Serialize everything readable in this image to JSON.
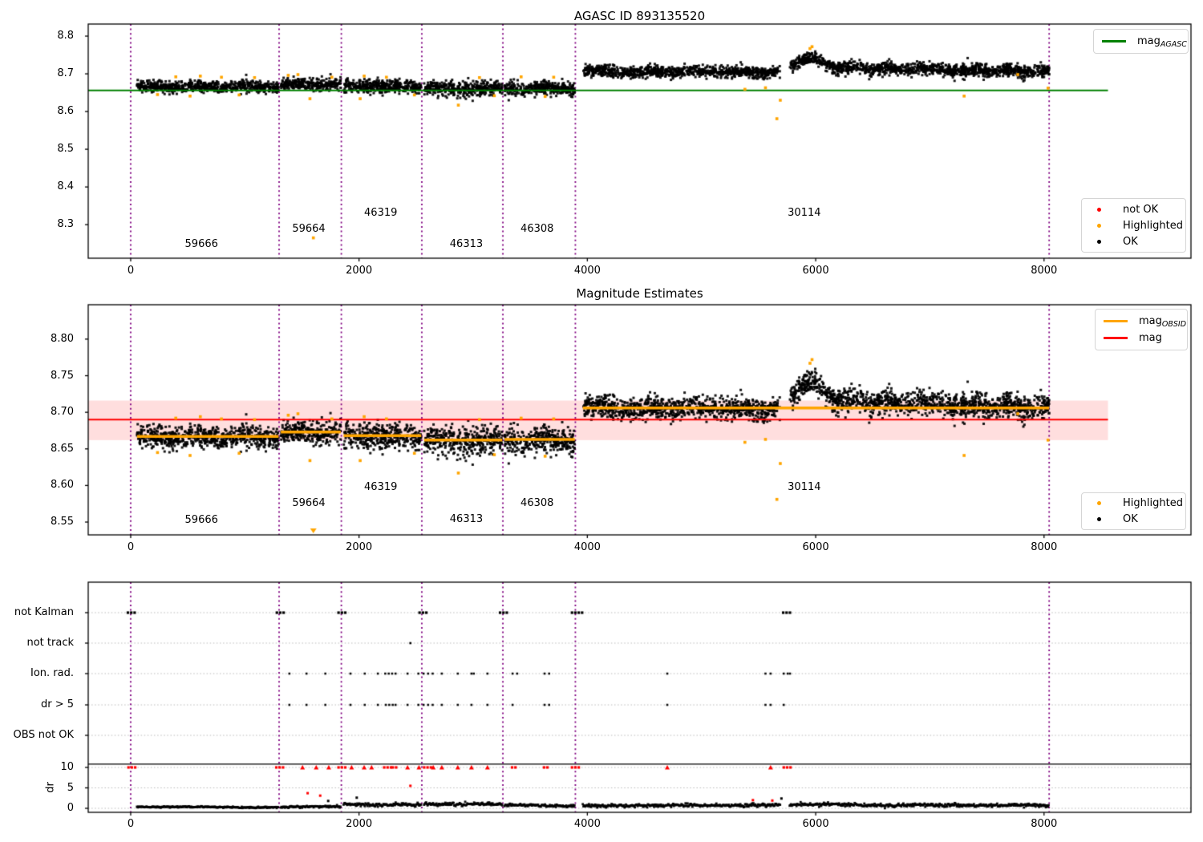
{
  "colors": {
    "ok": "#000000",
    "highlighted": "#ffa500",
    "not_ok": "#ff0000",
    "agasc_line": "#008000",
    "mag_line": "#ff0000",
    "obsid_line": "#ffa500",
    "boundary": "#800080",
    "band_fill": "rgba(255,0,0,0.13)",
    "grid": "#bbbbbb",
    "frame": "#000000"
  },
  "chart_data": [
    {
      "type": "scatter",
      "title": "AGASC ID 893135520",
      "xlim": [
        -372,
        9287
      ],
      "ylim": [
        8.211,
        8.832
      ],
      "yticks": [
        {
          "v": 8.8,
          "label": "8.8"
        },
        {
          "v": 8.7,
          "label": "8.7"
        },
        {
          "v": 8.6,
          "label": "8.6"
        },
        {
          "v": 8.5,
          "label": "8.5"
        },
        {
          "v": 8.4,
          "label": "8.4"
        },
        {
          "v": 8.3,
          "label": "8.3"
        }
      ],
      "xticks": [
        {
          "v": 0,
          "label": "0"
        },
        {
          "v": 2000,
          "label": "2000"
        },
        {
          "v": 4000,
          "label": "4000"
        },
        {
          "v": 6000,
          "label": "6000"
        },
        {
          "v": 8000,
          "label": "8000"
        }
      ],
      "agasc_mag": 8.656,
      "hline_span": [
        -372,
        8560
      ],
      "boundaries": [
        0,
        1300,
        1845,
        2550,
        3260,
        3895,
        8045
      ],
      "legend_lines": [
        {
          "main": "mag",
          "sub": "AGASC",
          "color": "#008000"
        }
      ],
      "legend_markers": [
        {
          "label": "not OK",
          "color": "#ff0000"
        },
        {
          "label": "Highlighted",
          "color": "#ffa500"
        },
        {
          "label": "OK",
          "color": "#000000"
        }
      ],
      "obsid_labels": [
        {
          "text": "59666",
          "x": 620,
          "y": 8.247
        },
        {
          "text": "59664",
          "x": 1560,
          "y": 8.288
        },
        {
          "text": "46319",
          "x": 2190,
          "y": 8.331
        },
        {
          "text": "46313",
          "x": 2940,
          "y": 8.247
        },
        {
          "text": "46308",
          "x": 3560,
          "y": 8.288
        },
        {
          "text": "30114",
          "x": 5900,
          "y": 8.331
        }
      ]
    },
    {
      "type": "scatter",
      "title": "Magnitude Estimates",
      "xlim": [
        -372,
        9287
      ],
      "ylim": [
        8.5325,
        8.847
      ],
      "yticks": [
        {
          "v": 8.8,
          "label": "8.80"
        },
        {
          "v": 8.75,
          "label": "8.75"
        },
        {
          "v": 8.7,
          "label": "8.70"
        },
        {
          "v": 8.65,
          "label": "8.65"
        },
        {
          "v": 8.6,
          "label": "8.60"
        },
        {
          "v": 8.55,
          "label": "8.55"
        }
      ],
      "xticks": [
        {
          "v": 0,
          "label": "0"
        },
        {
          "v": 2000,
          "label": "2000"
        },
        {
          "v": 4000,
          "label": "4000"
        },
        {
          "v": 6000,
          "label": "6000"
        },
        {
          "v": 8000,
          "label": "8000"
        }
      ],
      "mag": 8.69,
      "band": [
        8.662,
        8.716
      ],
      "hline_span": [
        -372,
        8560
      ],
      "boundaries": [
        0,
        1300,
        1845,
        2550,
        3260,
        3895,
        8045
      ],
      "legend_lines": [
        {
          "main": "mag",
          "sub": "OBSID",
          "color": "#ffa500"
        },
        {
          "main": "mag",
          "sub": "",
          "color": "#ff0000"
        }
      ],
      "legend_markers": [
        {
          "label": "Highlighted",
          "color": "#ffa500"
        },
        {
          "label": "OK",
          "color": "#000000"
        }
      ],
      "obsid_labels": [
        {
          "text": "59666",
          "x": 620,
          "y": 8.552
        },
        {
          "text": "59664",
          "x": 1560,
          "y": 8.575
        },
        {
          "text": "46319",
          "x": 2190,
          "y": 8.597
        },
        {
          "text": "46313",
          "x": 2940,
          "y": 8.553
        },
        {
          "text": "46308",
          "x": 3560,
          "y": 8.575
        },
        {
          "text": "30114",
          "x": 5900,
          "y": 8.597
        }
      ]
    },
    {
      "type": "flags",
      "categories": [
        "not Kalman",
        "not track",
        "Ion. rad.",
        "dr > 5",
        "OBS not OK"
      ],
      "dr_ticks": [
        {
          "v": 10,
          "label": "10"
        },
        {
          "v": 5,
          "label": "5"
        },
        {
          "v": 0,
          "label": "0"
        }
      ],
      "ylabel": "dr",
      "xticks": [
        {
          "v": 0,
          "label": "0"
        },
        {
          "v": 2000,
          "label": "2000"
        },
        {
          "v": 4000,
          "label": "4000"
        },
        {
          "v": 6000,
          "label": "6000"
        },
        {
          "v": 8000,
          "label": "8000"
        }
      ],
      "boundaries": [
        0,
        1300,
        1845,
        2550,
        3260,
        3895,
        8045
      ],
      "clip_line_dr": 10.8,
      "not_kalman": [
        [
          0,
          35
        ],
        [
          1300,
          30
        ],
        [
          1845,
          35
        ],
        [
          2550,
          30
        ],
        [
          3260,
          35
        ],
        [
          3900,
          45
        ],
        [
          5745,
          40
        ]
      ],
      "not_track": [
        2450
      ],
      "ion_rad": [
        1390,
        1540,
        1705,
        1925,
        2050,
        2165,
        2230,
        2260,
        2290,
        2320,
        2425,
        2520,
        2565,
        2605,
        2645,
        2725,
        2865,
        2985,
        3005,
        3125,
        3345,
        3385,
        3625,
        3665,
        4700,
        5560,
        5605,
        5720,
        5755,
        5775
      ],
      "dr_gt5": [
        1390,
        1540,
        1705,
        1925,
        2050,
        2165,
        2235,
        2265,
        2295,
        2320,
        2425,
        2520,
        2565,
        2605,
        2645,
        2725,
        2865,
        2985,
        3125,
        3345,
        3625,
        3665,
        4700,
        5560,
        5605,
        5720
      ],
      "dr10_red": [
        [
          0,
          30
        ],
        [
          1300,
          35
        ],
        [
          1505,
          8
        ],
        [
          1625,
          8
        ],
        [
          1735,
          8
        ],
        [
          1845,
          35
        ],
        [
          1935,
          8
        ],
        [
          2045,
          10
        ],
        [
          2110,
          8
        ],
        [
          2240,
          30
        ],
        [
          2300,
          15
        ],
        [
          2425,
          10
        ],
        [
          2525,
          10
        ],
        [
          2590,
          30
        ],
        [
          2650,
          12
        ],
        [
          2725,
          10
        ],
        [
          2865,
          10
        ],
        [
          2985,
          10
        ],
        [
          3125,
          10
        ],
        [
          3345,
          15
        ],
        [
          3625,
          15
        ],
        [
          3895,
          40
        ],
        [
          4700,
          10
        ],
        [
          5605,
          10
        ],
        [
          5740,
          30
        ]
      ],
      "red_points": [
        [
          1550,
          3.7
        ],
        [
          1660,
          3.1
        ],
        [
          2450,
          5.5
        ],
        [
          5450,
          2.0
        ],
        [
          5620,
          1.9
        ]
      ],
      "black_points": [
        [
          1730,
          1.8
        ],
        [
          1980,
          2.6
        ],
        [
          5700,
          2.4
        ]
      ],
      "dr_trace": [
        {
          "x0": 55,
          "x1": 1295,
          "mean": 0.3,
          "sigma": 0.09
        },
        {
          "x0": 1315,
          "x1": 1840,
          "mean": 0.36,
          "sigma": 0.12
        },
        {
          "x0": 1865,
          "x1": 2545,
          "sigma": 0.2,
          "meanPts": [
            [
              1865,
              1.1
            ],
            [
              1990,
              0.95
            ],
            [
              2150,
              0.8
            ],
            [
              2350,
              0.9
            ],
            [
              2545,
              0.85
            ]
          ]
        },
        {
          "x0": 2570,
          "x1": 3255,
          "sigma": 0.22,
          "meanPts": [
            [
              2570,
              0.9
            ],
            [
              2760,
              1.1
            ],
            [
              2950,
              0.95
            ],
            [
              3120,
              1.15
            ],
            [
              3255,
              0.9
            ]
          ]
        },
        {
          "x0": 3275,
          "x1": 3890,
          "mean": 0.65,
          "sigma": 0.16
        },
        {
          "x0": 3960,
          "x1": 8045,
          "sigma": 0.2,
          "meanPts": [
            [
              3960,
              0.7
            ],
            [
              4400,
              0.62
            ],
            [
              4800,
              0.82
            ],
            [
              5200,
              0.68
            ],
            [
              5600,
              0.78
            ],
            [
              5820,
              0.95
            ],
            [
              6200,
              0.88
            ],
            [
              6600,
              0.72
            ],
            [
              7000,
              0.84
            ],
            [
              7400,
              0.68
            ],
            [
              7800,
              0.8
            ],
            [
              8045,
              0.74
            ]
          ]
        }
      ]
    }
  ],
  "series_model": {
    "gaps": [
      [
        5688,
        5770
      ]
    ],
    "segments": [
      {
        "obsid": "59666",
        "x0": 55,
        "x1": 1295,
        "mag": 8.666,
        "sigma": 0.0075,
        "mag_obsid": 8.667
      },
      {
        "obsid": "59664",
        "x0": 1315,
        "x1": 1840,
        "mag": 8.672,
        "sigma": 0.008,
        "mag_obsid": 8.673
      },
      {
        "obsid": "46319",
        "x0": 1865,
        "x1": 2545,
        "mag": 8.667,
        "sigma": 0.009,
        "mag_obsid": 8.668
      },
      {
        "obsid": "46313",
        "x0": 2570,
        "x1": 3255,
        "mag": 8.661,
        "sigma": 0.01,
        "mag_obsid": 8.662
      },
      {
        "obsid": "46308",
        "x0": 3275,
        "x1": 3890,
        "mag": 8.662,
        "sigma": 0.009,
        "mag_obsid": 8.663
      },
      {
        "obsid": "30114",
        "x0": 3960,
        "x1": 8045,
        "sigma": 0.008,
        "mag_obsid": 8.706,
        "profile": [
          [
            3960,
            8.706
          ],
          [
            4150,
            8.709
          ],
          [
            4350,
            8.703
          ],
          [
            4550,
            8.707
          ],
          [
            4750,
            8.703
          ],
          [
            4950,
            8.708
          ],
          [
            5150,
            8.703
          ],
          [
            5350,
            8.706
          ],
          [
            5550,
            8.701
          ],
          [
            5680,
            8.704
          ],
          [
            5770,
            8.72
          ],
          [
            5890,
            8.738
          ],
          [
            5975,
            8.743
          ],
          [
            6060,
            8.728
          ],
          [
            6180,
            8.714
          ],
          [
            6330,
            8.721
          ],
          [
            6480,
            8.71
          ],
          [
            6630,
            8.718
          ],
          [
            6780,
            8.709
          ],
          [
            6930,
            8.716
          ],
          [
            7080,
            8.712
          ],
          [
            7230,
            8.707
          ],
          [
            7380,
            8.713
          ],
          [
            7530,
            8.705
          ],
          [
            7680,
            8.711
          ],
          [
            7830,
            8.704
          ],
          [
            7960,
            8.71
          ],
          [
            8045,
            8.706
          ]
        ]
      }
    ],
    "highlighted": [
      [
        235,
        8.645
      ],
      [
        395,
        8.692
      ],
      [
        520,
        8.641
      ],
      [
        610,
        8.694
      ],
      [
        795,
        8.691
      ],
      [
        950,
        8.644
      ],
      [
        1085,
        8.69
      ],
      [
        1380,
        8.696
      ],
      [
        1465,
        8.698
      ],
      [
        1570,
        8.634
      ],
      [
        1600,
        8.265
      ],
      [
        1762,
        8.691
      ],
      [
        2010,
        8.634
      ],
      [
        2045,
        8.694
      ],
      [
        2240,
        8.691
      ],
      [
        2485,
        8.644
      ],
      [
        2870,
        8.617
      ],
      [
        3055,
        8.69
      ],
      [
        3185,
        8.642
      ],
      [
        3420,
        8.692
      ],
      [
        3630,
        8.64
      ],
      [
        3705,
        8.691
      ],
      [
        5380,
        8.659
      ],
      [
        5560,
        8.663
      ],
      [
        5660,
        8.581
      ],
      [
        5690,
        8.63
      ],
      [
        5950,
        8.767
      ],
      [
        5968,
        8.772
      ],
      [
        7300,
        8.641
      ],
      [
        7770,
        8.698
      ],
      [
        8035,
        8.662
      ]
    ]
  }
}
